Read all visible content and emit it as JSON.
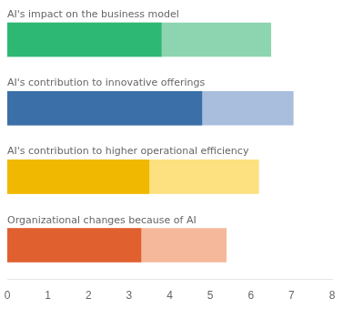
{
  "chart_data": {
    "type": "bar",
    "orientation": "horizontal",
    "categories": [
      "AI's impact on the business model",
      "AI's contribution to innovative offerings",
      "AI's contribution to higher operational efficiency",
      "Organizational changes because of AI"
    ],
    "series": [
      {
        "colors": [
          "#8dd5b0",
          "#a8bedc",
          "#fde080",
          "#f5b89a"
        ],
        "values": [
          6.5,
          7.05,
          6.2,
          5.4
        ]
      },
      {
        "colors": [
          "#2db874",
          "#3a6fa8",
          "#f0b800",
          "#e06030"
        ],
        "values": [
          3.8,
          4.8,
          3.5,
          3.3
        ]
      }
    ],
    "xlim": [
      0,
      8
    ],
    "xticks": [
      0,
      1,
      2,
      3,
      4,
      5,
      6,
      7,
      8
    ],
    "grid": false,
    "tick_labels": "x"
  }
}
